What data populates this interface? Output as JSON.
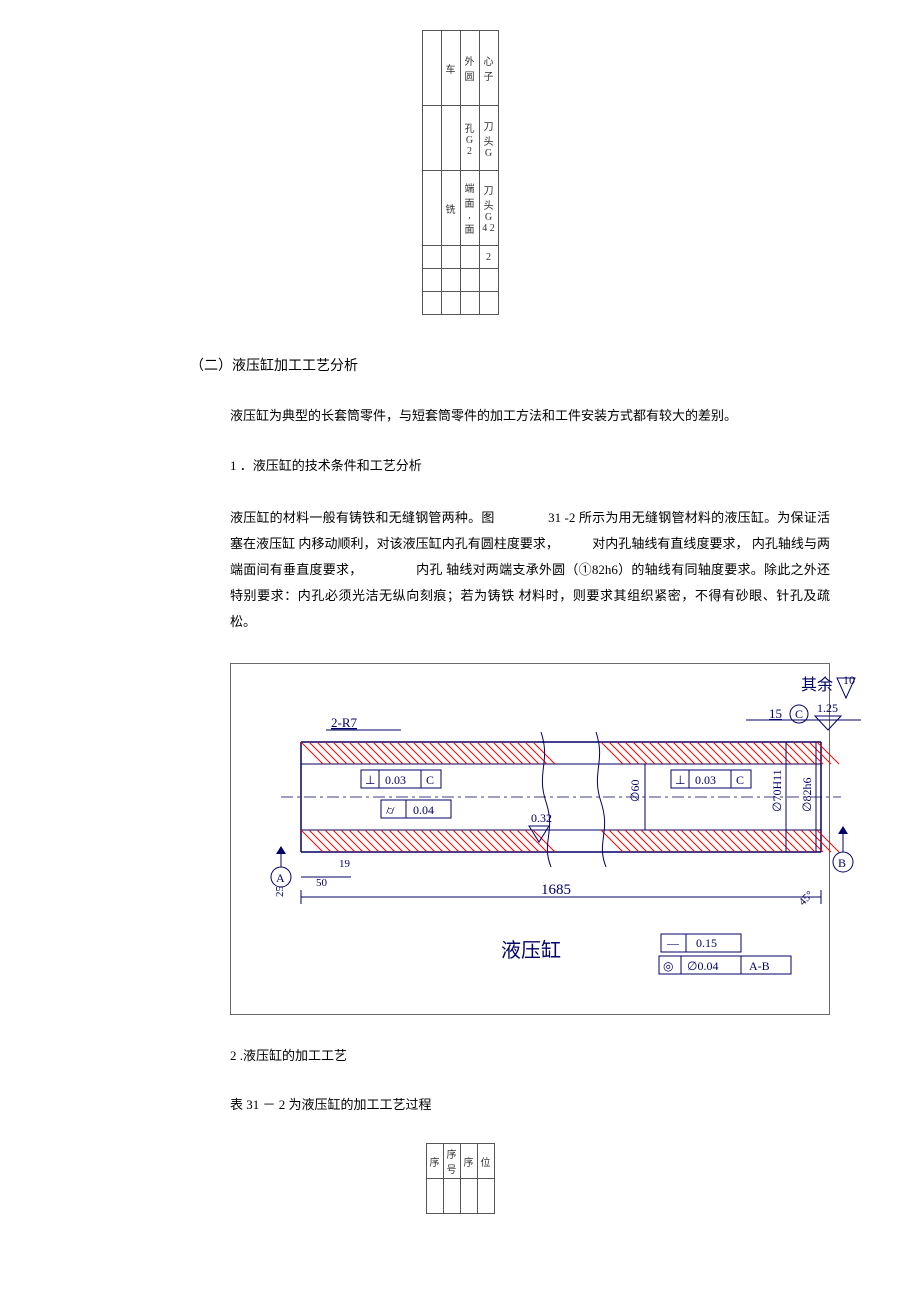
{
  "top_table": {
    "rows": [
      {
        "cells": [
          "",
          "车",
          "外圆",
          "心子"
        ],
        "cls": "tall"
      },
      {
        "cells": [
          "",
          "",
          "孔 G 2",
          "刀头 G"
        ],
        "cls": "mid"
      },
      {
        "cells": [
          "",
          "铣",
          "端面 , 面",
          "刀头 G 4 2"
        ],
        "cls": "tall"
      },
      {
        "cells": [
          "",
          "",
          "",
          "2"
        ],
        "cls": "short"
      },
      {
        "cells": [
          "",
          "",
          "",
          ""
        ],
        "cls": "short"
      },
      {
        "cells": [
          "",
          "",
          "",
          ""
        ],
        "cls": "short"
      }
    ]
  },
  "section2_title": "（二）液压缸加工工艺分析",
  "intro": "液压缸为典型的长套筒零件，与短套筒零件的加工方法和工件安装方式都有较大的差别。",
  "p1_title": "1 ．液压缸的技术条件和工艺分析",
  "p1_body_a": "液压缸的材料一般有铸铁和无缝钢管两种。图",
  "p1_body_b": "31 -2 所示为用无缝钢管材料的液压缸。为保证活塞在液压缸",
  "p1_body_c": "内移动顺利，对该液压缸内孔有圆柱度要求，",
  "p1_body_d": "对内孔轴线有直线度要求，",
  "p1_body_e": "内孔轴线与两端面间有垂直度要求，",
  "p1_body_f": "内孔",
  "p1_body_g": "轴线对两端支承外圆（①82h6）的轴线有同轴度要求。除此之外还特别要求：内孔必须光洁无纵向刻痕；若为铸铁 材料时，则要求其组织紧密，不得有砂眼、针孔及疏松。",
  "figure": {
    "top_right": "其余",
    "top_right_num": "10",
    "r_label": "2-R7",
    "perp1": "0.03",
    "datumC": "C",
    "perp2": "0.03",
    "ctol": "0.04",
    "ra": "0.32",
    "len": "1685",
    "title": "液压缸",
    "t1": "0.15",
    "t2": "∅0.04",
    "t2ref": "A-B",
    "dimA": "25",
    "dimB": "19",
    "dimC": "15",
    "dimD": "∅70H11",
    "dimE": "∅82h6",
    "dimF": "50",
    "dimG": "∅60",
    "ra2": "1.25",
    "datumA": "A",
    "datumB": "B",
    "datumC2": "C",
    "hatch_color": "#ff0000",
    "line_color": "#000066"
  },
  "p2_title": "2 .液压缸的加工工艺",
  "p2_body": "表 31 － 2 为液压缸的加工工艺过程",
  "bottom_table": {
    "rows": [
      {
        "cells": [
          "序",
          "序号",
          "序",
          "位"
        ]
      },
      {
        "cells": [
          "",
          "",
          "",
          ""
        ]
      }
    ]
  }
}
